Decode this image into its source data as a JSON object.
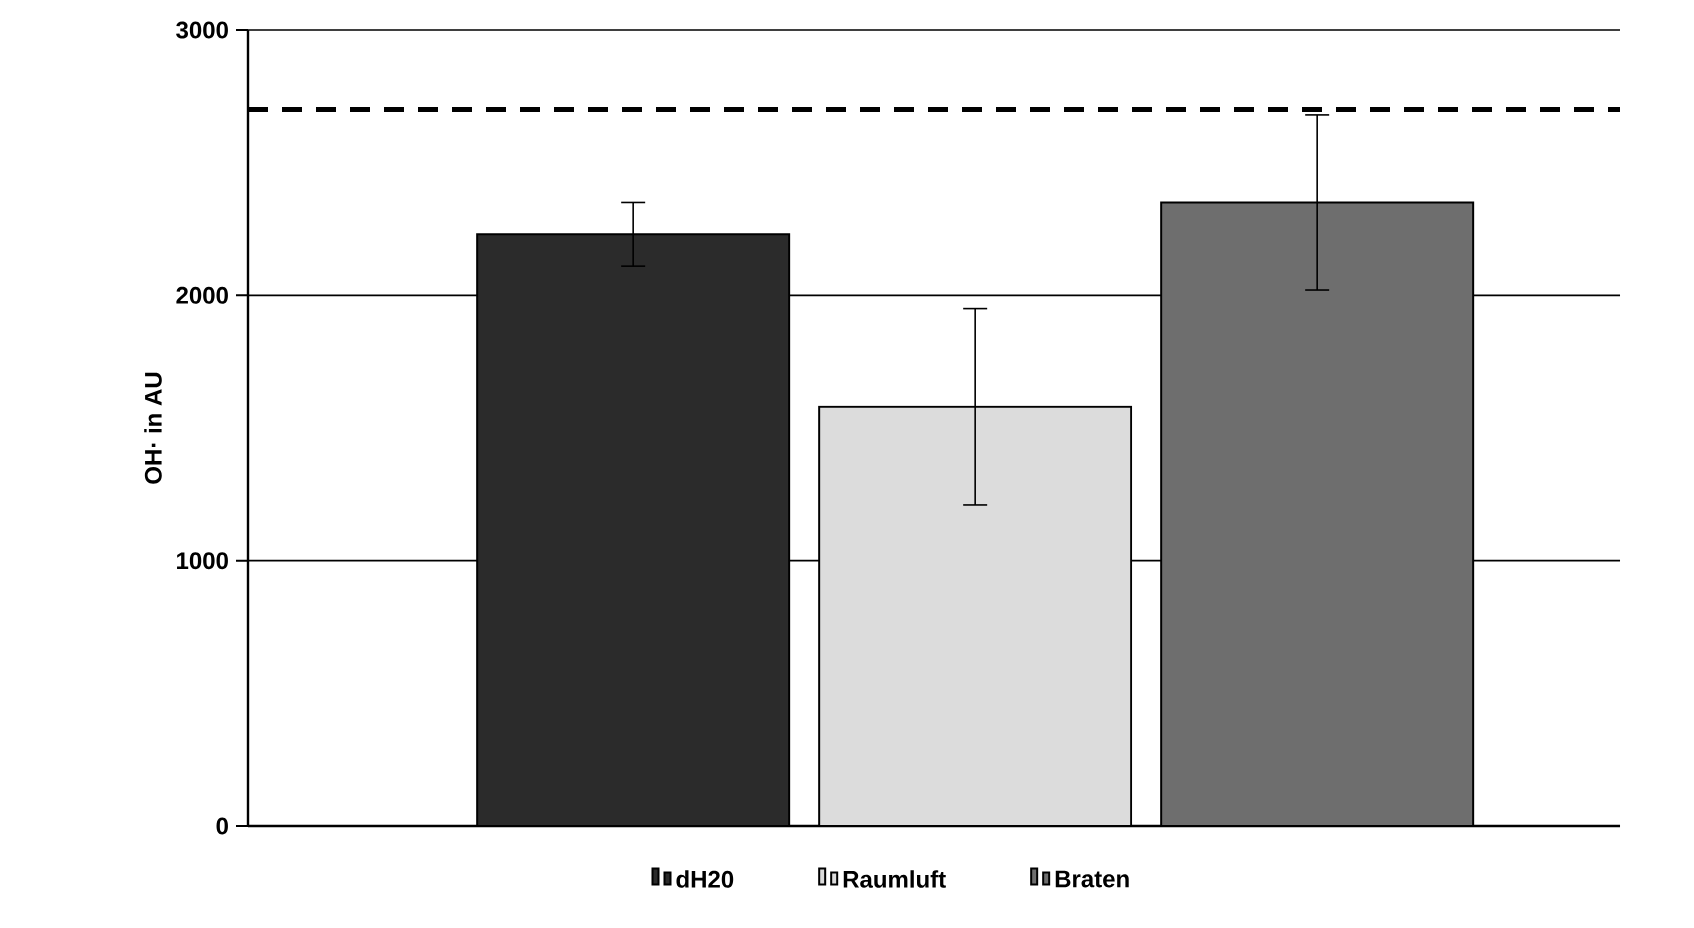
{
  "chart_data": {
    "type": "bar",
    "ylabel": "OH· in AU",
    "categories": [
      null
    ],
    "series": [
      {
        "name": "dH20",
        "color": "#2b2b2b",
        "values": [
          2230
        ],
        "errors": [
          120
        ]
      },
      {
        "name": "Raumluft",
        "color": "#dcdcdc",
        "values": [
          1580
        ],
        "errors": [
          370
        ]
      },
      {
        "name": "Braten",
        "color": "#6e6e6e",
        "values": [
          2350
        ],
        "errors": [
          330
        ]
      }
    ],
    "ylim": [
      0,
      3000
    ],
    "yticks": [
      0,
      1000,
      2000,
      3000
    ],
    "grid": "y",
    "legend": "bottom",
    "ref_lines": [
      {
        "axis": "y",
        "value": 2700,
        "color": "#000000",
        "line_style": "dashed"
      }
    ]
  }
}
